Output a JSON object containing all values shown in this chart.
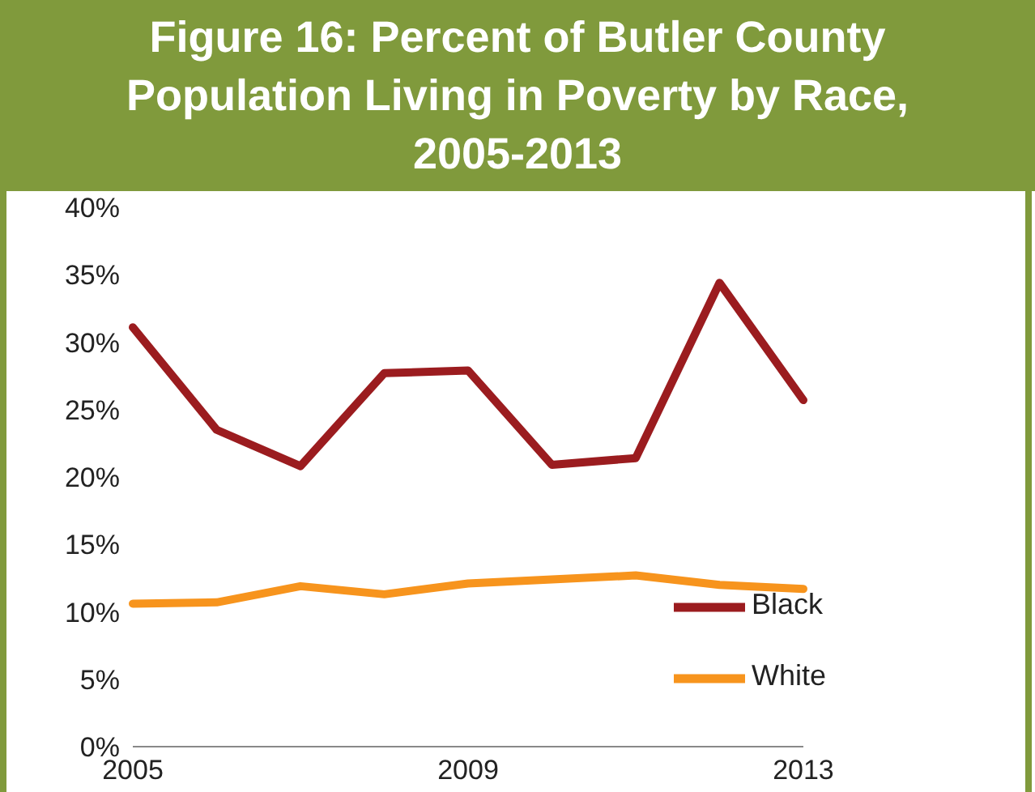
{
  "chart_data": {
    "type": "line",
    "title": "Figure 16: Percent of Butler County Population Living in Poverty by Race, 2005-2013",
    "categories": [
      "2005",
      null,
      null,
      null,
      "2009",
      null,
      null,
      null,
      "2013"
    ],
    "series": [
      {
        "name": "Black",
        "color": "#9b1c1f",
        "values": [
          31.1,
          23.5,
          20.8,
          27.7,
          27.9,
          20.9,
          21.4,
          34.4,
          25.7
        ]
      },
      {
        "name": "White",
        "color": "#f7941d",
        "values": [
          10.6,
          10.7,
          11.9,
          11.3,
          12.1,
          12.4,
          12.7,
          12.0,
          11.7
        ]
      }
    ],
    "ylim": [
      0,
      40
    ],
    "yticks": [
      {
        "value": 0,
        "label": "0%"
      },
      {
        "value": 5,
        "label": "5%"
      },
      {
        "value": 10,
        "label": "10%"
      },
      {
        "value": 15,
        "label": "15%"
      },
      {
        "value": 20,
        "label": "20%"
      },
      {
        "value": 25,
        "label": "25%"
      },
      {
        "value": 30,
        "label": "30%"
      },
      {
        "value": 35,
        "label": "35%"
      },
      {
        "value": 40,
        "label": "40%"
      }
    ],
    "grid": false,
    "legend": "bottom right",
    "marker": "none",
    "line_style": "solid"
  }
}
